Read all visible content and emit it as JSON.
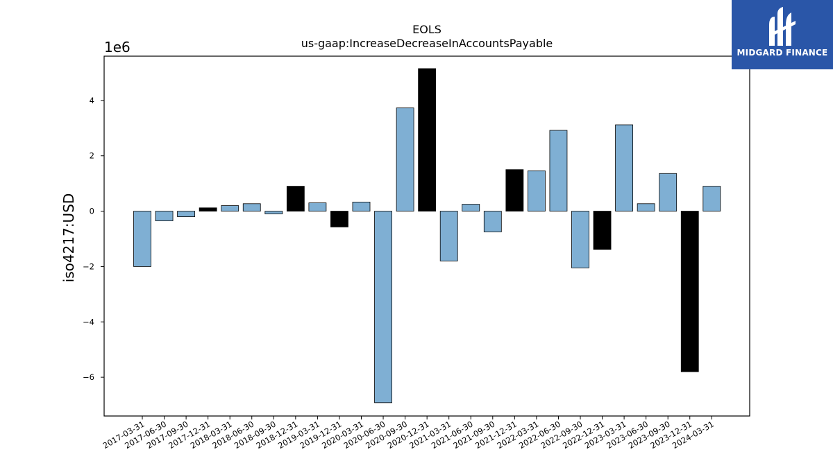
{
  "chart_data": {
    "type": "bar",
    "title": "EOLS",
    "subtitle": "us-gaap:IncreaseDecreaseInAccountsPayable",
    "ylabel": "iso4217:USD",
    "y_exponent_label": "1e6",
    "ylim": [
      -7.4,
      5.6
    ],
    "yticks": [
      -6,
      -4,
      -2,
      0,
      2,
      4
    ],
    "ytick_labels": [
      "−6",
      "−4",
      "−2",
      "0",
      "2",
      "4"
    ],
    "grid": false,
    "legend": "none",
    "colors": {
      "blue": "#7fafd3",
      "black": "#000000"
    },
    "categories": [
      "2017-03-31",
      "2017-06-30",
      "2017-09-30",
      "2017-12-31",
      "2018-03-31",
      "2018-06-30",
      "2018-09-30",
      "2018-12-31",
      "2019-03-31",
      "2019-12-31",
      "2020-03-31",
      "2020-06-30",
      "2020-09-30",
      "2020-12-31",
      "2021-03-31",
      "2021-06-30",
      "2021-09-30",
      "2021-12-31",
      "2022-03-31",
      "2022-06-30",
      "2022-09-30",
      "2022-12-31",
      "2023-03-31",
      "2023-06-30",
      "2023-09-30",
      "2023-12-31",
      "2024-03-31"
    ],
    "values": [
      -2.0,
      -0.35,
      -0.2,
      0.12,
      0.2,
      0.27,
      -0.1,
      0.9,
      0.3,
      -0.57,
      0.33,
      -6.92,
      3.73,
      5.15,
      -1.8,
      0.25,
      -0.75,
      1.5,
      1.46,
      2.92,
      -2.05,
      -1.38,
      3.12,
      0.27,
      1.36,
      -5.8,
      0.9
    ],
    "bar_colors": [
      "blue",
      "blue",
      "blue",
      "black",
      "blue",
      "blue",
      "blue",
      "black",
      "blue",
      "black",
      "blue",
      "blue",
      "blue",
      "black",
      "blue",
      "blue",
      "blue",
      "black",
      "blue",
      "blue",
      "blue",
      "black",
      "blue",
      "blue",
      "blue",
      "black",
      "blue"
    ]
  },
  "logo": {
    "text": "MIDGARD FINANCE",
    "icon": "midgard-logo-icon"
  }
}
